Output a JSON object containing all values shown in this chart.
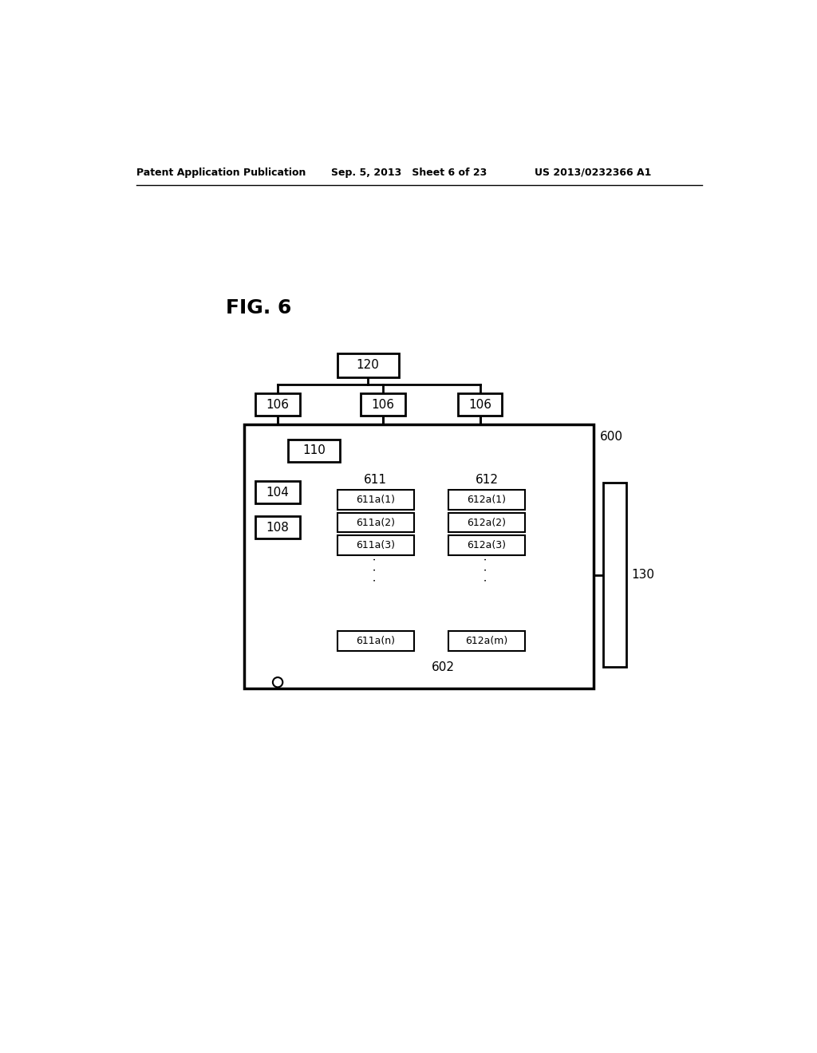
{
  "title": "FIG. 6",
  "header_left": "Patent Application Publication",
  "header_mid": "Sep. 5, 2013   Sheet 6 of 23",
  "header_right": "US 2013/0232366 A1",
  "bg_color": "#ffffff",
  "line_color": "#000000",
  "box_fill": "#ffffff",
  "label_120": "120",
  "label_106a": "106",
  "label_106b": "106",
  "label_106c": "106",
  "label_600": "600",
  "label_110": "110",
  "label_104": "104",
  "label_108": "108",
  "label_611": "611",
  "label_612": "612",
  "label_602": "602",
  "label_130": "130",
  "sub_labels_611": [
    "611a(1)",
    "611a(2)",
    "611a(3)",
    "611a(n)"
  ],
  "sub_labels_612": [
    "612a(1)",
    "612a(2)",
    "612a(3)",
    "612a(m)"
  ]
}
